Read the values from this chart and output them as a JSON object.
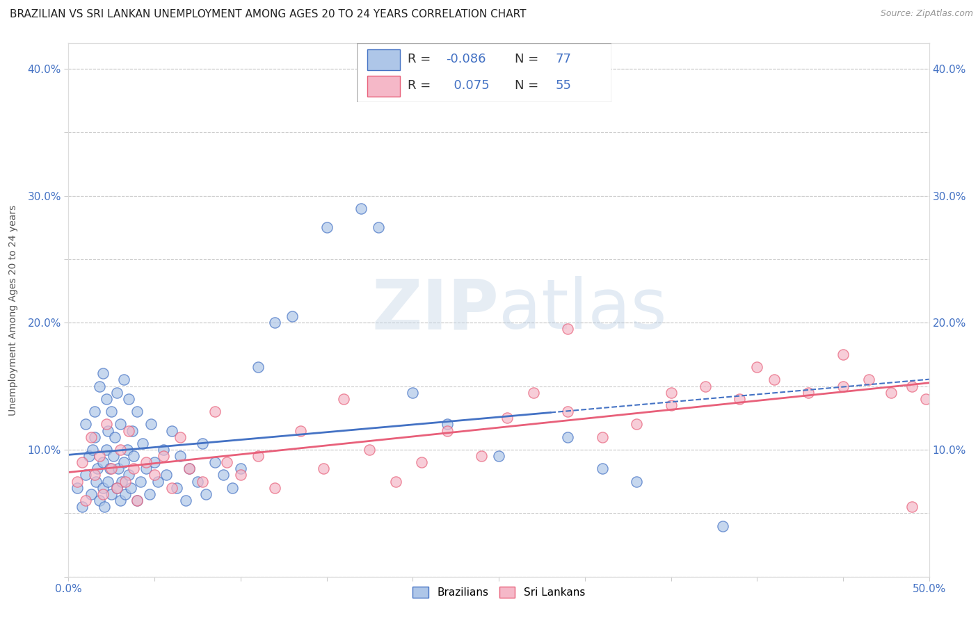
{
  "title": "BRAZILIAN VS SRI LANKAN UNEMPLOYMENT AMONG AGES 20 TO 24 YEARS CORRELATION CHART",
  "source": "Source: ZipAtlas.com",
  "ylabel": "Unemployment Among Ages 20 to 24 years",
  "xlim": [
    0.0,
    0.5
  ],
  "ylim": [
    0.0,
    0.42
  ],
  "brazil_R": -0.086,
  "brazil_N": 77,
  "srilanka_R": 0.075,
  "srilanka_N": 55,
  "brazil_color": "#aec6e8",
  "srilanka_color": "#f5b8c8",
  "brazil_line_color": "#4472c4",
  "srilanka_line_color": "#e8607a",
  "legend_label_brazil": "Brazilians",
  "legend_label_srilanka": "Sri Lankans",
  "brazil_x": [
    0.005,
    0.008,
    0.01,
    0.01,
    0.012,
    0.013,
    0.014,
    0.015,
    0.015,
    0.016,
    0.017,
    0.018,
    0.018,
    0.02,
    0.02,
    0.02,
    0.021,
    0.022,
    0.022,
    0.023,
    0.023,
    0.024,
    0.025,
    0.025,
    0.026,
    0.027,
    0.028,
    0.028,
    0.029,
    0.03,
    0.03,
    0.031,
    0.032,
    0.032,
    0.033,
    0.034,
    0.035,
    0.035,
    0.036,
    0.037,
    0.038,
    0.04,
    0.04,
    0.042,
    0.043,
    0.045,
    0.047,
    0.048,
    0.05,
    0.052,
    0.055,
    0.057,
    0.06,
    0.063,
    0.065,
    0.068,
    0.07,
    0.075,
    0.078,
    0.08,
    0.085,
    0.09,
    0.095,
    0.1,
    0.11,
    0.12,
    0.13,
    0.15,
    0.17,
    0.18,
    0.2,
    0.22,
    0.25,
    0.29,
    0.31,
    0.33,
    0.38
  ],
  "brazil_y": [
    0.07,
    0.055,
    0.08,
    0.12,
    0.095,
    0.065,
    0.1,
    0.11,
    0.13,
    0.075,
    0.085,
    0.06,
    0.15,
    0.07,
    0.09,
    0.16,
    0.055,
    0.1,
    0.14,
    0.075,
    0.115,
    0.085,
    0.065,
    0.13,
    0.095,
    0.11,
    0.07,
    0.145,
    0.085,
    0.06,
    0.12,
    0.075,
    0.09,
    0.155,
    0.065,
    0.1,
    0.08,
    0.14,
    0.07,
    0.115,
    0.095,
    0.06,
    0.13,
    0.075,
    0.105,
    0.085,
    0.065,
    0.12,
    0.09,
    0.075,
    0.1,
    0.08,
    0.115,
    0.07,
    0.095,
    0.06,
    0.085,
    0.075,
    0.105,
    0.065,
    0.09,
    0.08,
    0.07,
    0.085,
    0.165,
    0.2,
    0.205,
    0.275,
    0.29,
    0.275,
    0.145,
    0.12,
    0.095,
    0.11,
    0.085,
    0.075,
    0.04
  ],
  "srilanka_x": [
    0.005,
    0.008,
    0.01,
    0.013,
    0.015,
    0.018,
    0.02,
    0.022,
    0.025,
    0.028,
    0.03,
    0.033,
    0.035,
    0.038,
    0.04,
    0.045,
    0.05,
    0.055,
    0.06,
    0.065,
    0.07,
    0.078,
    0.085,
    0.092,
    0.1,
    0.11,
    0.12,
    0.135,
    0.148,
    0.16,
    0.175,
    0.19,
    0.205,
    0.22,
    0.24,
    0.255,
    0.27,
    0.29,
    0.31,
    0.33,
    0.35,
    0.37,
    0.39,
    0.41,
    0.43,
    0.45,
    0.465,
    0.478,
    0.49,
    0.498,
    0.29,
    0.35,
    0.4,
    0.45,
    0.49
  ],
  "srilanka_y": [
    0.075,
    0.09,
    0.06,
    0.11,
    0.08,
    0.095,
    0.065,
    0.12,
    0.085,
    0.07,
    0.1,
    0.075,
    0.115,
    0.085,
    0.06,
    0.09,
    0.08,
    0.095,
    0.07,
    0.11,
    0.085,
    0.075,
    0.13,
    0.09,
    0.08,
    0.095,
    0.07,
    0.115,
    0.085,
    0.14,
    0.1,
    0.075,
    0.09,
    0.115,
    0.095,
    0.125,
    0.145,
    0.13,
    0.11,
    0.12,
    0.135,
    0.15,
    0.14,
    0.155,
    0.145,
    0.15,
    0.155,
    0.145,
    0.15,
    0.14,
    0.195,
    0.145,
    0.165,
    0.175,
    0.055
  ]
}
